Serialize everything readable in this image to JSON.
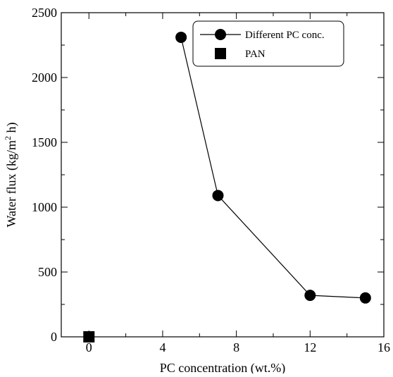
{
  "chart_data": {
    "type": "scatter",
    "title": "",
    "xlabel": "PC concentration (wt.%)",
    "ylabel": "Water flux (kg/m",
    "ylabel_sup": "2",
    "ylabel_tail": " h)",
    "xlim": [
      -1.5,
      16
    ],
    "ylim": [
      0,
      2500
    ],
    "xticks": [
      0,
      4,
      8,
      12,
      16
    ],
    "xticks_minor": [
      2,
      6,
      10,
      14
    ],
    "yticks": [
      0,
      500,
      1000,
      1500,
      2000,
      2500
    ],
    "yticks_minor": [
      250,
      750,
      1250,
      1750,
      2250
    ],
    "grid": false,
    "legend_position": "top-right",
    "series": [
      {
        "name": "Different PC conc.",
        "marker": "circle",
        "line": true,
        "color": "#000000",
        "x": [
          5,
          7,
          12,
          15
        ],
        "y": [
          2310,
          1090,
          320,
          300
        ]
      },
      {
        "name": "PAN",
        "marker": "square",
        "line": false,
        "color": "#000000",
        "x": [
          0
        ],
        "y": [
          0
        ]
      }
    ]
  }
}
